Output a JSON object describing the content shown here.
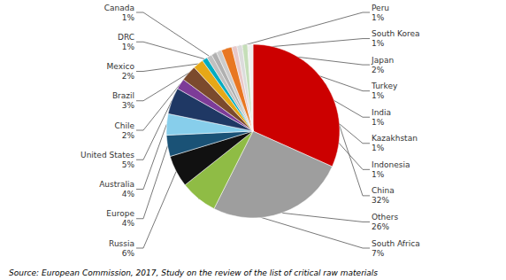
{
  "chart_data": {
    "type": "pie",
    "categories": [
      "China",
      "Others",
      "South Africa",
      "Russia",
      "Europe",
      "Australia",
      "United States",
      "Chile",
      "Brazil",
      "Mexico",
      "DRC",
      "Canada",
      "Peru",
      "South Korea",
      "Japan",
      "Turkey",
      "India",
      "Kazakhstan",
      "Indonesia"
    ],
    "values": [
      32,
      26,
      7,
      6,
      4,
      4,
      5,
      2,
      3,
      2,
      1,
      1,
      1,
      1,
      2,
      1,
      1,
      1,
      1
    ],
    "value_labels": [
      "32%",
      "26%",
      "7%",
      "6%",
      "4%",
      "4%",
      "5%",
      "2%",
      "3%",
      "2%",
      "1%",
      "1%",
      "1%",
      "1%",
      "2%",
      "1%",
      "1%",
      "1%",
      "1%"
    ],
    "colors": [
      "#cc0000",
      "#9e9e9e",
      "#8fbc45",
      "#111111",
      "#1a5276",
      "#87ceeb",
      "#1f3864",
      "#7d3c98",
      "#7b4a2d",
      "#e6a817",
      "#00acc1",
      "#c0c0c0",
      "#b0b0b0",
      "#cccccc",
      "#e87722",
      "#e8c8c8",
      "#dcdcdc",
      "#c5deb8",
      "#f0f0f0"
    ],
    "data_labels": true,
    "annotations": [
      "Source: European Commission, 2017, Study on the review of the list of critical raw materials"
    ]
  }
}
